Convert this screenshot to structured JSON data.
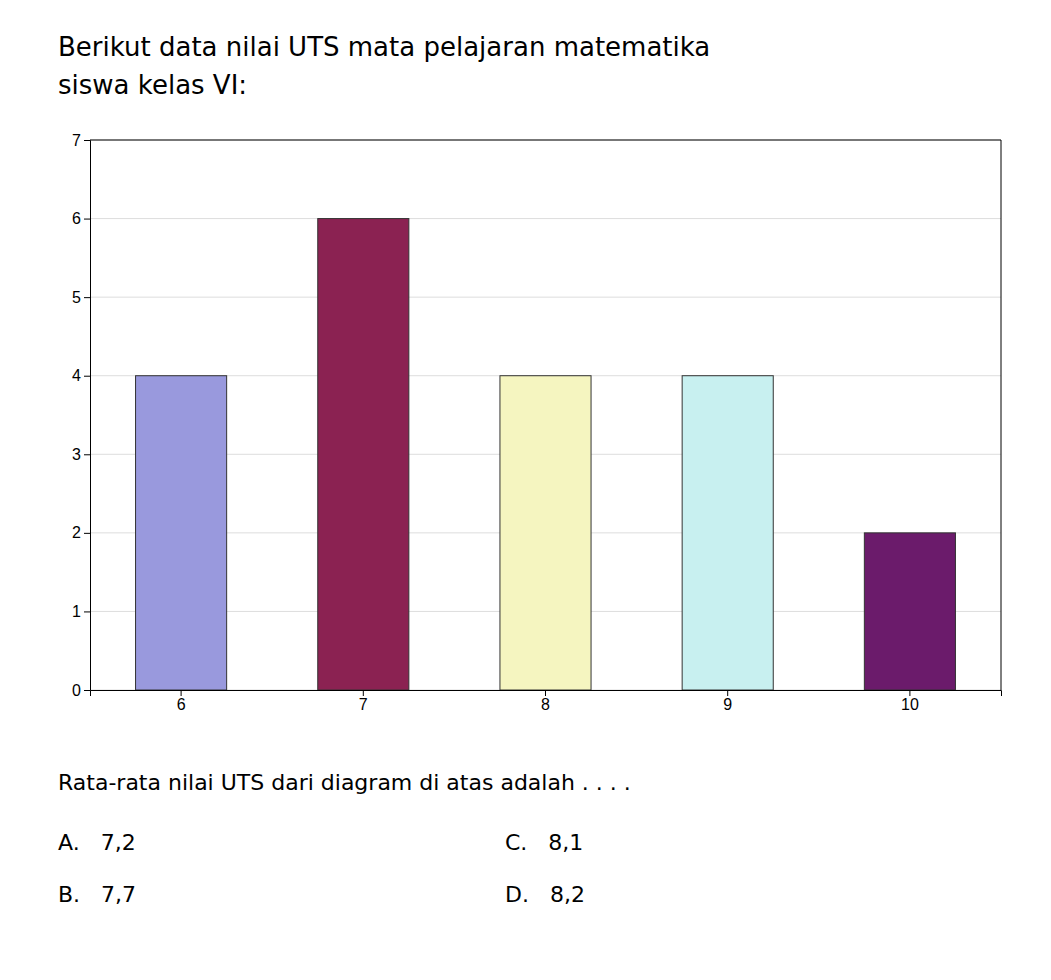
{
  "chart_data": {
    "type": "bar",
    "title": "Berikut data nilai UTS mata pelajaran matematika",
    "subtitle": "siswa kelas VI:",
    "categories": [
      "6",
      "7",
      "8",
      "9",
      "10"
    ],
    "values": [
      4,
      6,
      4,
      4,
      2
    ],
    "colors": [
      "#9999dd",
      "#8B2252",
      "#f5f5c0",
      "#c8f0f0",
      "#6B1B6B"
    ],
    "ylim": [
      0,
      7
    ],
    "yticks": [
      0,
      1,
      2,
      3,
      4,
      5,
      6,
      7
    ],
    "grid": true,
    "annotations": [
      "Rata-rata nilai UTS dari diagram di atas adalah . . . .",
      "A.   7,2",
      "B.   7,7",
      "C.   8,1",
      "D.   8,2"
    ]
  }
}
